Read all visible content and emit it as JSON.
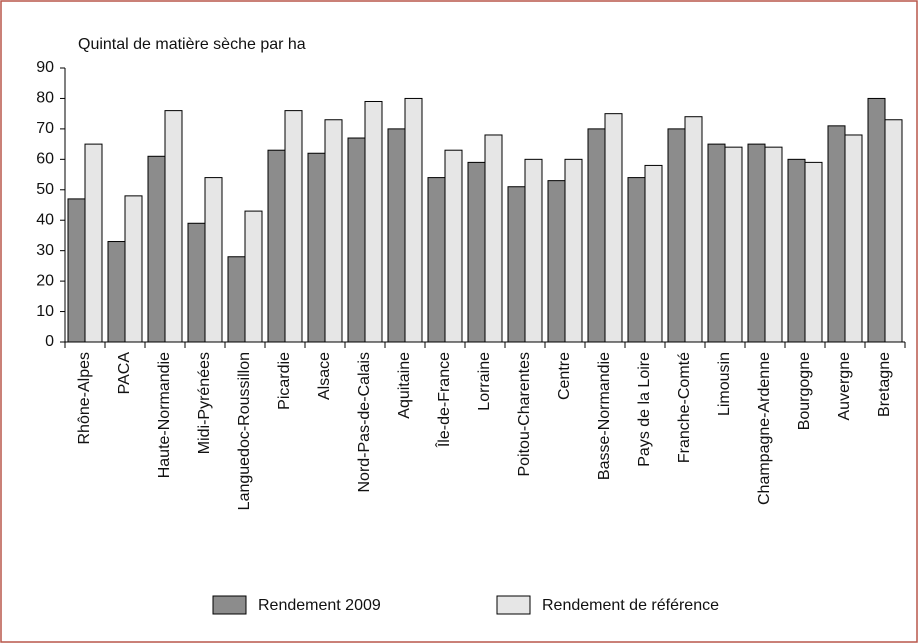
{
  "chart_data": {
    "type": "bar",
    "y_label": "Quintal de matière sèche par ha",
    "categories": [
      "Rhône-Alpes",
      "PACA",
      "Haute-Normandie",
      "Midi-Pyrénées",
      "Languedoc-Roussillon",
      "Picardie",
      "Alsace",
      "Nord-Pas-de-Calais",
      "Aquitaine",
      "Île-de-France",
      "Lorraine",
      "Poitou-Charentes",
      "Centre",
      "Basse-Normandie",
      "Pays de la Loire",
      "Franche-Comté",
      "Limousin",
      "Champagne-Ardenne",
      "Bourgogne",
      "Auvergne",
      "Bretagne"
    ],
    "series": [
      {
        "name": "Rendement 2009",
        "color": "#8c8c8c",
        "values": [
          47,
          33,
          61,
          39,
          28,
          63,
          62,
          67,
          70,
          54,
          59,
          51,
          53,
          70,
          54,
          70,
          65,
          65,
          60,
          71,
          80
        ]
      },
      {
        "name": "Rendement de référence",
        "color": "#e6e6e6",
        "values": [
          65,
          48,
          76,
          54,
          43,
          76,
          73,
          79,
          80,
          63,
          68,
          60,
          60,
          75,
          58,
          74,
          64,
          64,
          59,
          68,
          73
        ]
      }
    ],
    "ylim": [
      0,
      90
    ],
    "yticks": [
      0,
      10,
      20,
      30,
      40,
      50,
      60,
      70,
      80,
      90
    ],
    "grid": false,
    "legend": "bottom"
  }
}
